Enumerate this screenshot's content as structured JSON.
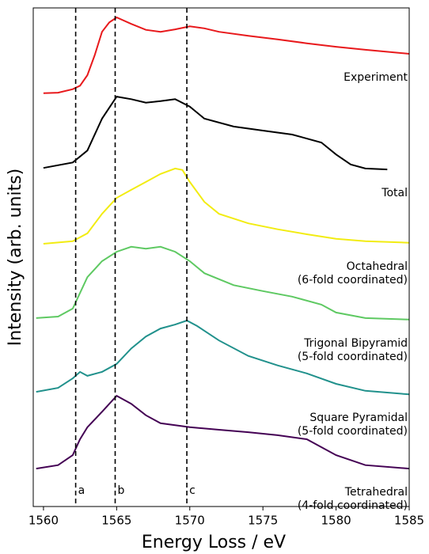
{
  "chart_data": {
    "type": "line",
    "xlabel": "Energy Loss / eV",
    "ylabel": "Intensity (arb. units)",
    "xlim": [
      1559.3,
      1585
    ],
    "xticks": [
      1560,
      1565,
      1570,
      1575,
      1580,
      1585
    ],
    "ylim": [
      0,
      10
    ],
    "series": [
      {
        "name": "Experiment",
        "color": "#e8191c",
        "x": [
          1560,
          1561,
          1562,
          1562.5,
          1563,
          1563.5,
          1564,
          1564.5,
          1565,
          1566,
          1567,
          1568,
          1569,
          1570,
          1571,
          1572,
          1574,
          1576,
          1578,
          1580,
          1582,
          1585
        ],
        "values": [
          8.29,
          8.3,
          8.37,
          8.44,
          8.65,
          9.05,
          9.52,
          9.71,
          9.81,
          9.68,
          9.56,
          9.52,
          9.57,
          9.63,
          9.59,
          9.52,
          9.44,
          9.37,
          9.29,
          9.22,
          9.16,
          9.08
        ]
      },
      {
        "name": "Total",
        "color": "#000000",
        "x": [
          1560,
          1562,
          1563,
          1564,
          1565,
          1566,
          1567,
          1568,
          1569,
          1570,
          1571,
          1573,
          1575,
          1577,
          1579,
          1580,
          1581,
          1582,
          1583.5
        ],
        "values": [
          6.79,
          6.9,
          7.14,
          7.78,
          8.22,
          8.17,
          8.1,
          8.13,
          8.17,
          8.02,
          7.78,
          7.62,
          7.54,
          7.46,
          7.3,
          7.06,
          6.86,
          6.78,
          6.76
        ]
      },
      {
        "name": "Octahedral\n(6-fold coordinated)",
        "color": "#f2ec12",
        "x": [
          1560,
          1562,
          1563,
          1564,
          1565,
          1566,
          1567,
          1568,
          1569,
          1569.5,
          1570,
          1571,
          1572,
          1574,
          1576,
          1578,
          1580,
          1582,
          1585
        ],
        "values": [
          5.27,
          5.32,
          5.48,
          5.87,
          6.19,
          6.35,
          6.51,
          6.67,
          6.78,
          6.75,
          6.51,
          6.11,
          5.87,
          5.68,
          5.56,
          5.46,
          5.37,
          5.32,
          5.29
        ]
      },
      {
        "name": "Trigonal Bipyramid\n(5-fold coordinated)",
        "color": "#5ec962",
        "x": [
          1559.5,
          1561,
          1562,
          1563,
          1564,
          1565,
          1566,
          1567,
          1568,
          1569,
          1570,
          1571,
          1573,
          1575,
          1577,
          1579,
          1580,
          1582,
          1585
        ],
        "values": [
          3.78,
          3.81,
          3.97,
          4.6,
          4.92,
          5.11,
          5.21,
          5.17,
          5.21,
          5.11,
          4.92,
          4.68,
          4.44,
          4.32,
          4.21,
          4.05,
          3.89,
          3.78,
          3.75
        ]
      },
      {
        "name": "Square Pyramidal\n(5-fold coordinated)",
        "color": "#21918c",
        "x": [
          1559.5,
          1561,
          1562,
          1562.5,
          1563,
          1564,
          1565,
          1566,
          1567,
          1568,
          1569,
          1569.8,
          1570.5,
          1572,
          1574,
          1576,
          1578,
          1580,
          1582,
          1585
        ],
        "values": [
          2.3,
          2.38,
          2.57,
          2.7,
          2.62,
          2.7,
          2.86,
          3.17,
          3.41,
          3.57,
          3.65,
          3.73,
          3.62,
          3.33,
          3.02,
          2.83,
          2.67,
          2.46,
          2.32,
          2.25
        ]
      },
      {
        "name": "Tetrahedral\n(4-fold coordinated)",
        "color": "#440154",
        "x": [
          1559.5,
          1561,
          1562,
          1562.5,
          1563,
          1564,
          1565,
          1566,
          1567,
          1568,
          1570,
          1572,
          1574,
          1576,
          1578,
          1580,
          1582,
          1585
        ],
        "values": [
          0.76,
          0.83,
          1.03,
          1.35,
          1.59,
          1.9,
          2.22,
          2.06,
          1.83,
          1.67,
          1.59,
          1.54,
          1.49,
          1.43,
          1.35,
          1.03,
          0.83,
          0.76
        ]
      }
    ],
    "annotations": [
      {
        "x": 1562.2,
        "label": "a"
      },
      {
        "x": 1564.9,
        "label": "b"
      },
      {
        "x": 1569.8,
        "label": "c"
      }
    ]
  }
}
